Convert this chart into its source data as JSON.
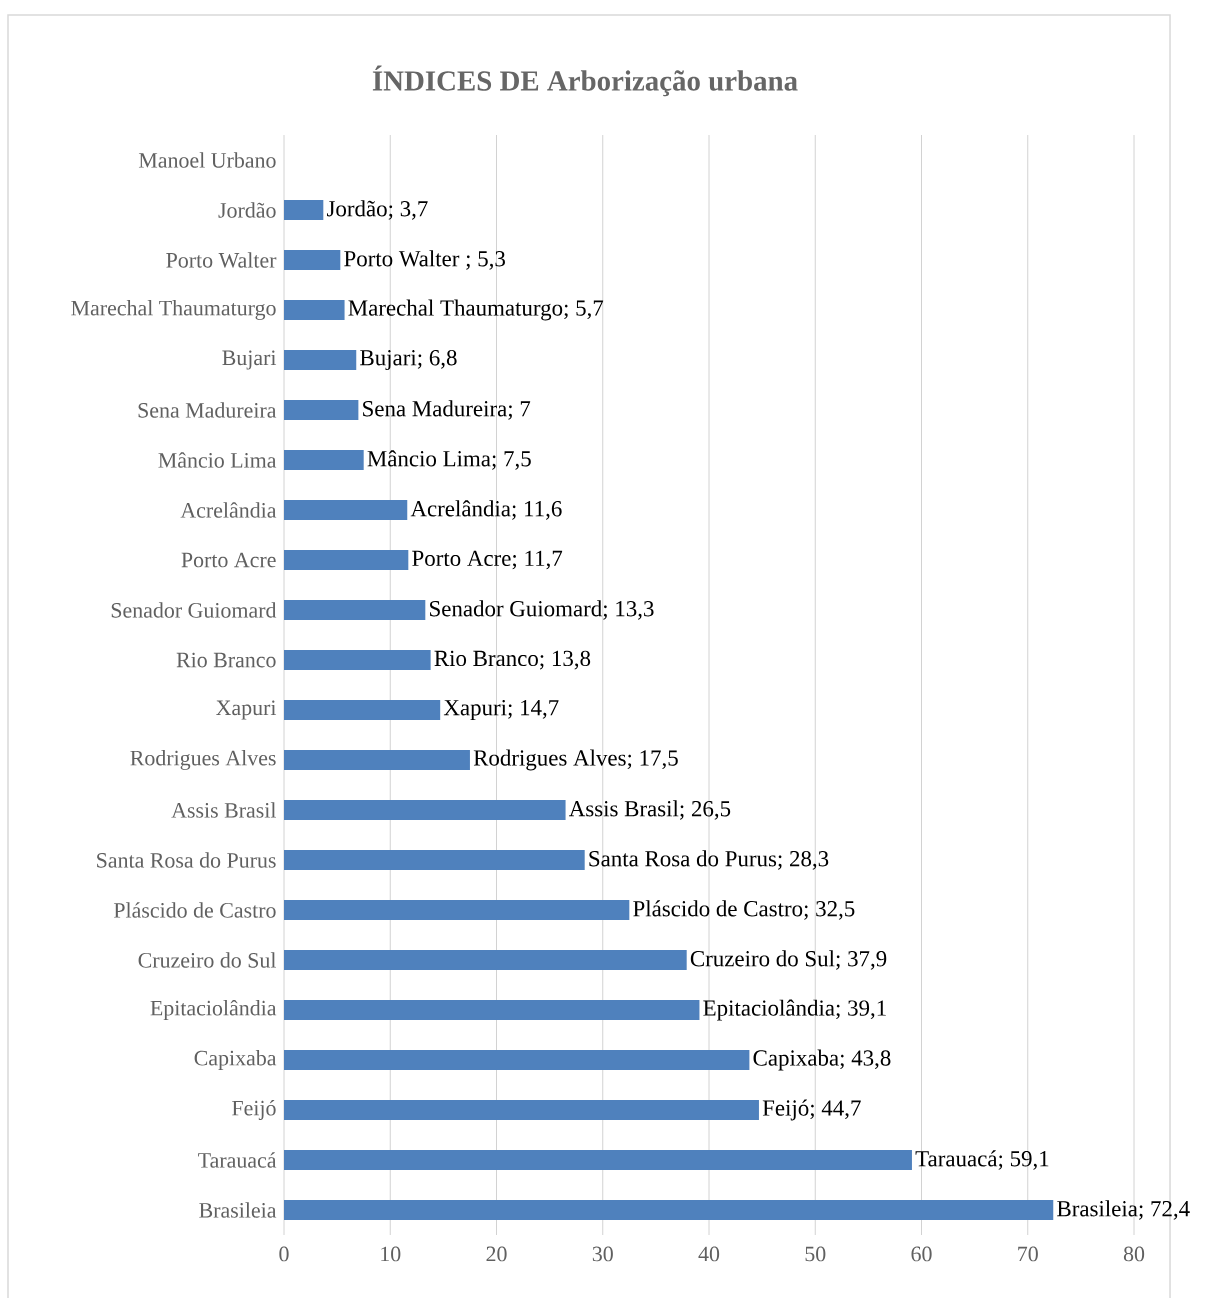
{
  "chart_data": {
    "type": "bar",
    "orientation": "horizontal",
    "title": "ÍNDICES DE Arborização urbana",
    "categories": [
      "Manoel Urbano",
      "Jordão",
      "Porto Walter",
      "Marechal Thaumaturgo",
      "Bujari",
      "Sena Madureira",
      "Mâncio Lima",
      "Acrelândia",
      "Porto Acre",
      "Senador Guiomard",
      "Rio Branco",
      "Xapuri",
      "Rodrigues Alves",
      "Assis Brasil",
      "Santa Rosa do Purus",
      "Pláscido de Castro",
      "Cruzeiro do Sul",
      "Epitaciolândia",
      "Capixaba",
      "Feijó",
      "Tarauacá",
      "Brasileia"
    ],
    "values": [
      null,
      3.7,
      5.3,
      5.7,
      6.8,
      7,
      7.5,
      11.6,
      11.7,
      13.3,
      13.8,
      14.7,
      17.5,
      26.5,
      28.3,
      32.5,
      37.9,
      39.1,
      43.8,
      44.7,
      59.1,
      72.4
    ],
    "value_labels": [
      null,
      "Jordão; 3,7",
      "Porto Walter ; 5,3",
      "Marechal Thaumaturgo; 5,7",
      "Bujari; 6,8",
      "Sena Madureira; 7",
      "Mâncio Lima; 7,5",
      "Acrelândia; 11,6",
      "Porto Acre; 11,7",
      "Senador Guiomard; 13,3",
      "Rio Branco; 13,8",
      "Xapuri; 14,7",
      "Rodrigues Alves; 17,5",
      "Assis Brasil; 26,5",
      "Santa Rosa do Purus; 28,3",
      "Pláscido de Castro; 32,5",
      "Cruzeiro do Sul; 37,9",
      "Epitaciolândia; 39,1",
      "Capixaba; 43,8",
      "Feijó; 44,7",
      "Tarauacá; 59,1",
      "Brasileia; 72,4"
    ],
    "color": "#4f81bd",
    "xlim": [
      0,
      80
    ],
    "xticks": [
      0,
      10,
      20,
      30,
      40,
      50,
      60,
      70,
      80
    ],
    "grid": "x"
  }
}
